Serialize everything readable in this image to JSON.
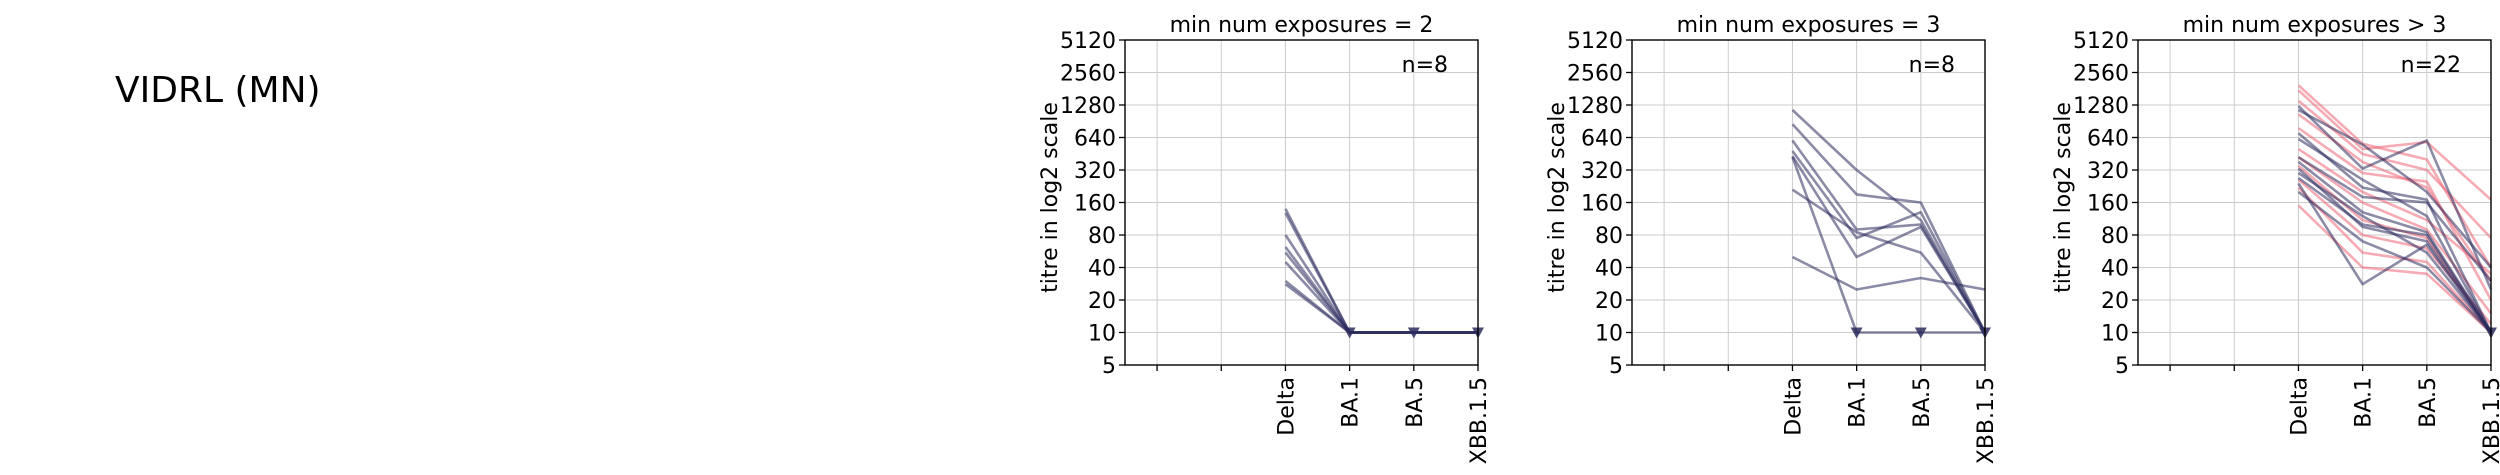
{
  "page": {
    "title": "VIDRL (MN)"
  },
  "colors": {
    "group_a": "#2c2c5e",
    "group_b": "#ee6677",
    "grid": "#cccccc",
    "axis": "#000000"
  },
  "chart_data": [
    {
      "type": "line",
      "title": "min num exposures = 2",
      "ylabel": "titre in log2 scale",
      "xlabel": "",
      "y_scale": "log2",
      "ylim": [
        5,
        5120
      ],
      "y_ticks": [
        5,
        10,
        20,
        40,
        80,
        160,
        320,
        640,
        1280,
        2560,
        5120
      ],
      "x_slots": [
        "",
        "",
        "Delta",
        "BA.1",
        "BA.5",
        "XBB.1.5"
      ],
      "x_labels": [
        "Delta",
        "BA.1",
        "BA.5",
        "XBB.1.5"
      ],
      "annotation": "n=8",
      "grid": true,
      "series": [
        {
          "group": "a",
          "values": [
            140,
            10,
            10,
            10
          ]
        },
        {
          "group": "a",
          "values": [
            128,
            10,
            10,
            10
          ]
        },
        {
          "group": "a",
          "values": [
            80,
            10,
            10,
            10
          ]
        },
        {
          "group": "a",
          "values": [
            62,
            10,
            10,
            10
          ]
        },
        {
          "group": "a",
          "values": [
            55,
            10,
            10,
            10
          ]
        },
        {
          "group": "a",
          "values": [
            45,
            10,
            10,
            10
          ]
        },
        {
          "group": "a",
          "values": [
            30,
            10,
            10,
            10
          ]
        },
        {
          "group": "a",
          "values": [
            28,
            10,
            10,
            10
          ]
        }
      ],
      "lod_markers": [
        [
          1,
          10
        ],
        [
          2,
          10
        ],
        [
          3,
          10
        ]
      ]
    },
    {
      "type": "line",
      "title": "min num exposures = 3",
      "ylabel": "titre in log2 scale",
      "xlabel": "",
      "y_scale": "log2",
      "ylim": [
        5,
        5120
      ],
      "y_ticks": [
        5,
        10,
        20,
        40,
        80,
        160,
        320,
        640,
        1280,
        2560,
        5120
      ],
      "x_slots": [
        "",
        "",
        "Delta",
        "BA.1",
        "BA.5",
        "XBB.1.5"
      ],
      "x_labels": [
        "Delta",
        "BA.1",
        "BA.5",
        "XBB.1.5"
      ],
      "annotation": "n=8",
      "grid": true,
      "series": [
        {
          "group": "a",
          "values": [
            1150,
            320,
            110,
            10
          ]
        },
        {
          "group": "a",
          "values": [
            850,
            190,
            160,
            10
          ]
        },
        {
          "group": "a",
          "values": [
            600,
            90,
            100,
            10
          ]
        },
        {
          "group": "a",
          "values": [
            480,
            75,
            130,
            10
          ]
        },
        {
          "group": "a",
          "values": [
            430,
            50,
            95,
            10
          ]
        },
        {
          "group": "a",
          "values": [
            210,
            85,
            55,
            10
          ]
        },
        {
          "group": "a",
          "values": [
            50,
            25,
            32,
            25
          ]
        },
        {
          "group": "a",
          "values": [
            420,
            10,
            10,
            10
          ]
        }
      ],
      "lod_markers": [
        [
          1,
          10
        ],
        [
          2,
          10
        ],
        [
          3,
          10
        ]
      ]
    },
    {
      "type": "line",
      "title": "min num exposures > 3",
      "ylabel": "titre in log2 scale",
      "xlabel": "",
      "y_scale": "log2",
      "ylim": [
        5,
        5120
      ],
      "y_ticks": [
        5,
        10,
        20,
        40,
        80,
        160,
        320,
        640,
        1280,
        2560,
        5120
      ],
      "x_slots": [
        "",
        "",
        "Delta",
        "BA.1",
        "BA.5",
        "XBB.1.5"
      ],
      "x_labels": [
        "Delta",
        "BA.1",
        "BA.5",
        "XBB.1.5"
      ],
      "annotation": "n=22",
      "grid": true,
      "series": [
        {
          "group": "b",
          "values": [
            1950,
            560,
            400,
            40
          ]
        },
        {
          "group": "b",
          "values": [
            1750,
            500,
            580,
            170
          ]
        },
        {
          "group": "b",
          "values": [
            1400,
            450,
            320,
            75
          ]
        },
        {
          "group": "b",
          "values": [
            1050,
            380,
            220,
            30
          ]
        },
        {
          "group": "b",
          "values": [
            780,
            300,
            250,
            20
          ]
        },
        {
          "group": "b",
          "values": [
            500,
            200,
            110,
            35
          ]
        },
        {
          "group": "b",
          "values": [
            420,
            160,
            90,
            15
          ]
        },
        {
          "group": "b",
          "values": [
            350,
            110,
            75,
            10
          ]
        },
        {
          "group": "b",
          "values": [
            260,
            80,
            60,
            12
          ]
        },
        {
          "group": "b",
          "values": [
            220,
            55,
            45,
            10
          ]
        },
        {
          "group": "b",
          "values": [
            150,
            40,
            35,
            10
          ]
        },
        {
          "group": "a",
          "values": [
            1250,
            330,
            600,
            25
          ]
        },
        {
          "group": "a",
          "values": [
            1150,
            550,
            200,
            40
          ]
        },
        {
          "group": "a",
          "values": [
            700,
            220,
            170,
            10
          ]
        },
        {
          "group": "a",
          "values": [
            620,
            260,
            120,
            10
          ]
        },
        {
          "group": "a",
          "values": [
            420,
            180,
            160,
            30
          ]
        },
        {
          "group": "a",
          "values": [
            380,
            130,
            85,
            10
          ]
        },
        {
          "group": "a",
          "values": [
            330,
            95,
            70,
            10
          ]
        },
        {
          "group": "a",
          "values": [
            300,
            120,
            55,
            10
          ]
        },
        {
          "group": "a",
          "values": [
            270,
            100,
            80,
            10
          ]
        },
        {
          "group": "a",
          "values": [
            240,
            28,
            65,
            10
          ]
        },
        {
          "group": "a",
          "values": [
            200,
            70,
            40,
            10
          ]
        }
      ],
      "lod_markers": [
        [
          3,
          10
        ]
      ]
    }
  ]
}
